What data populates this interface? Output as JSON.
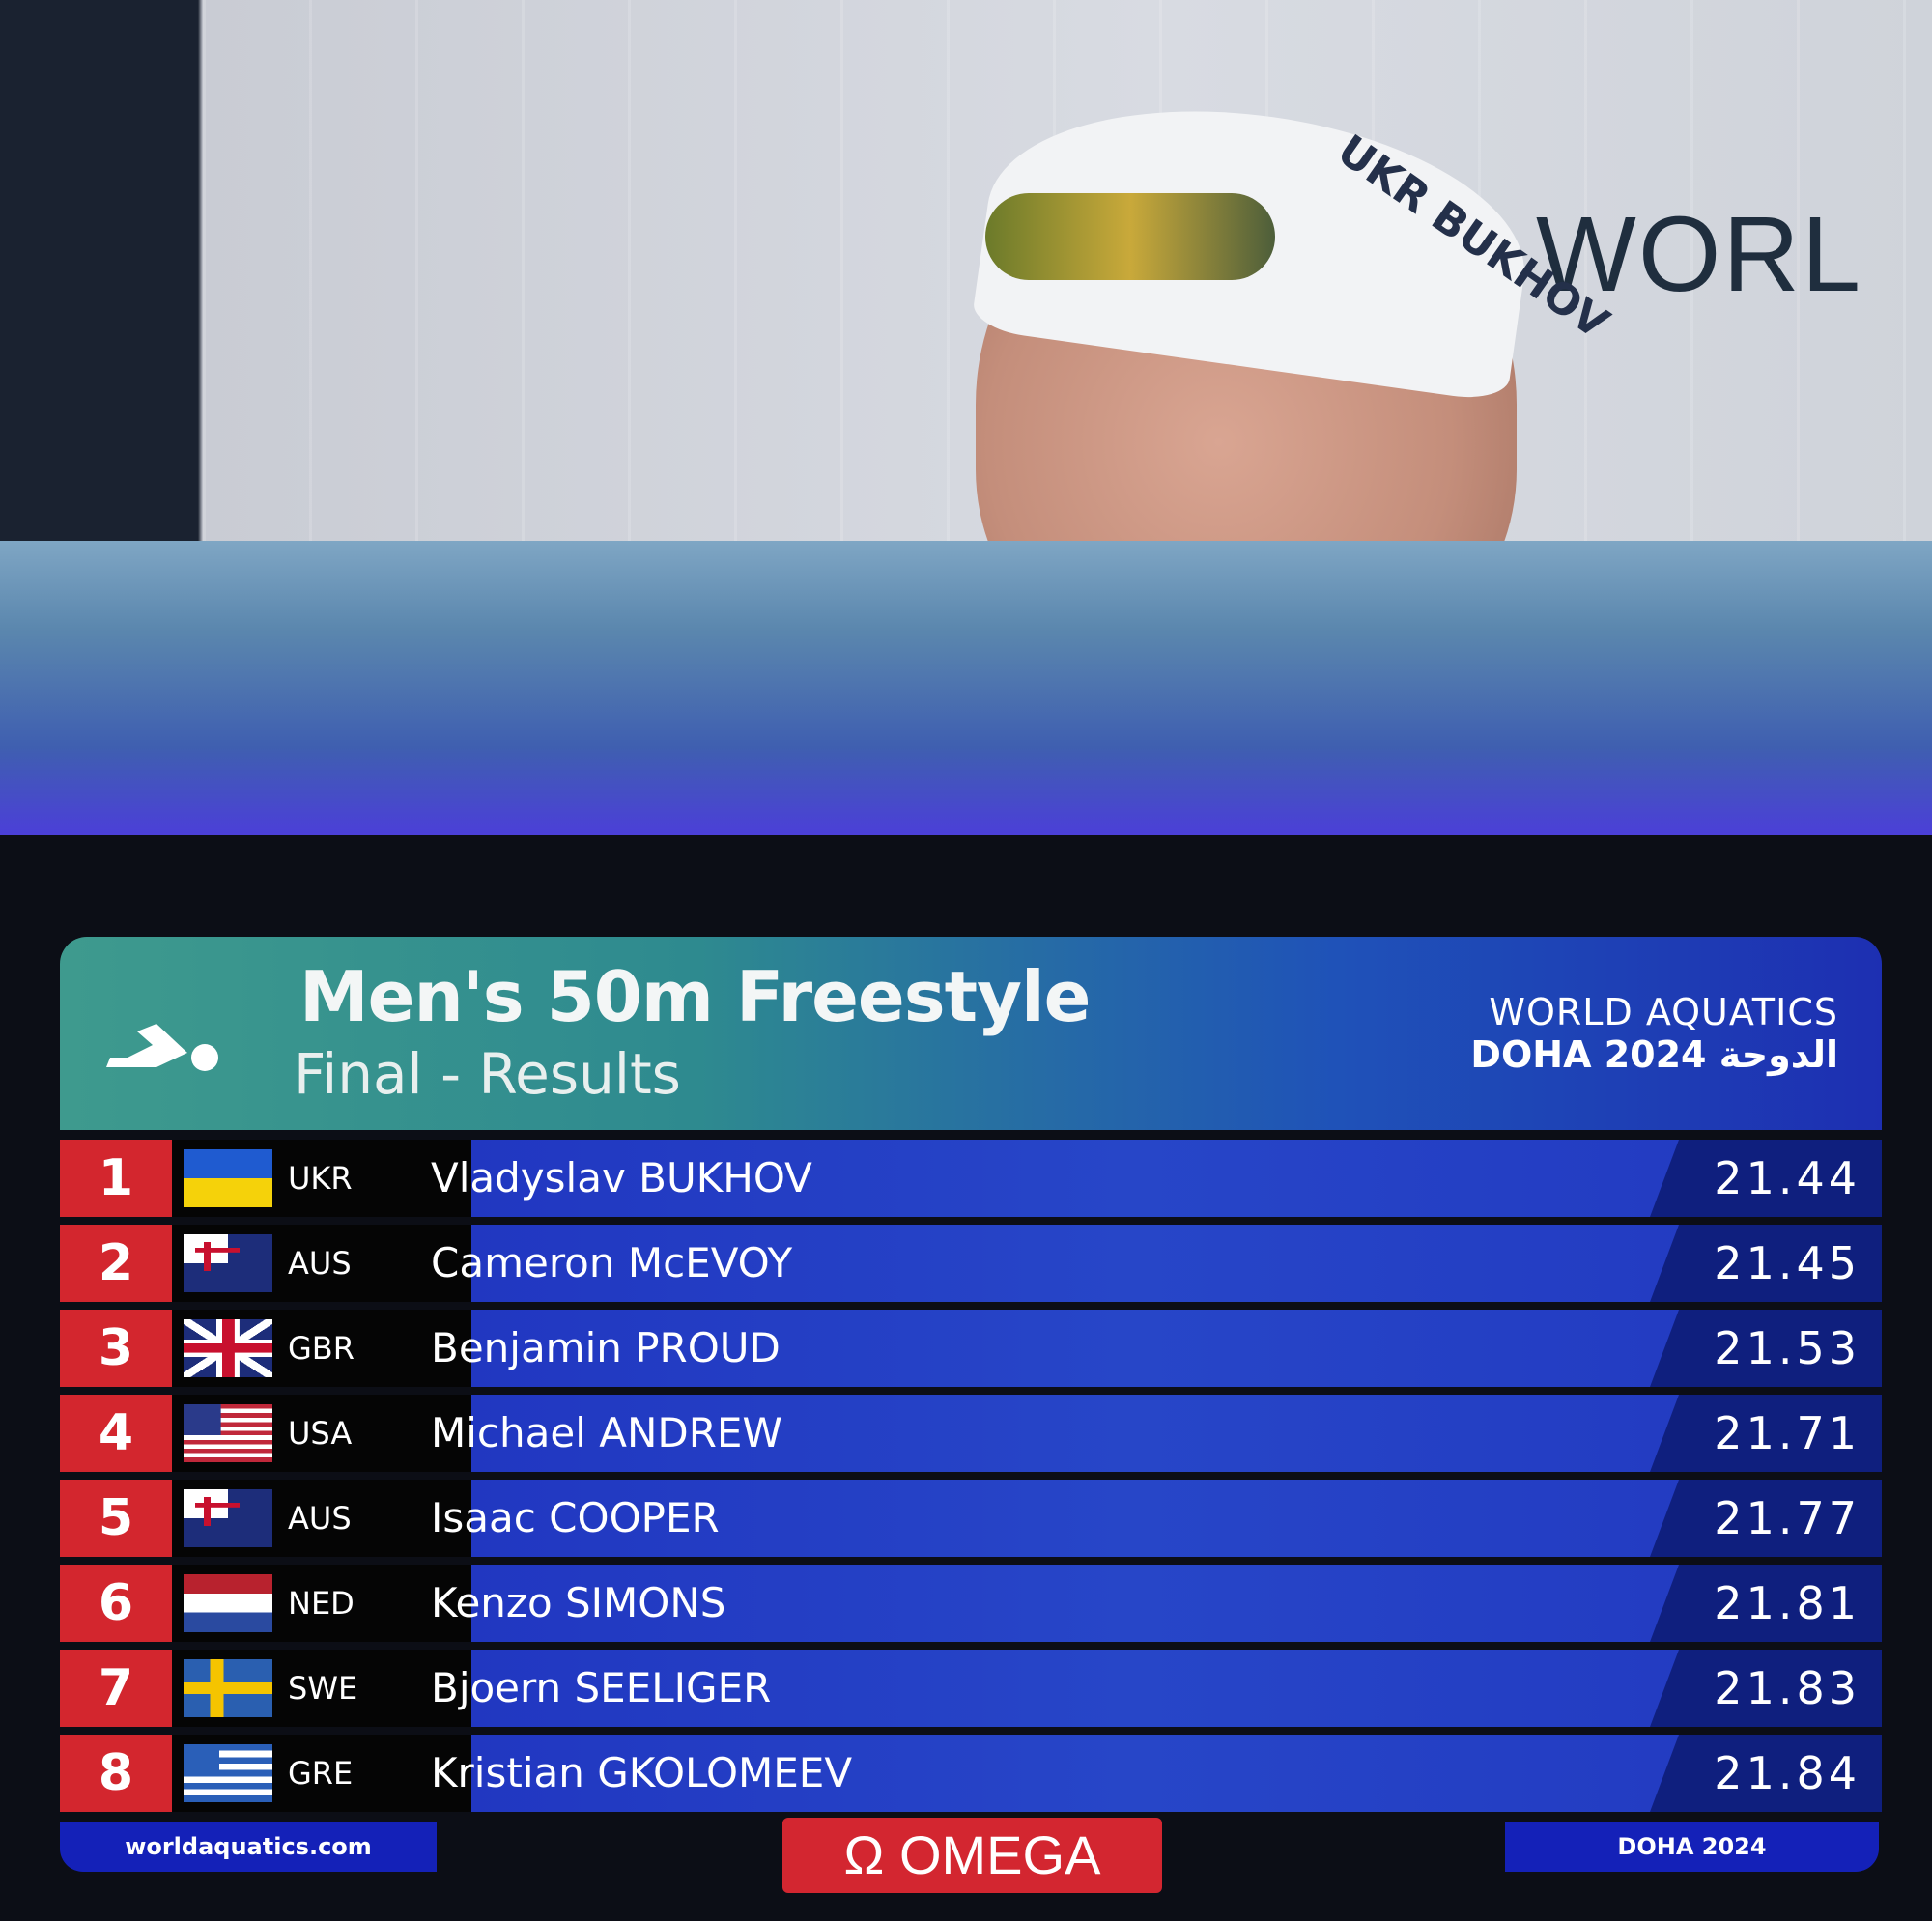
{
  "photo": {
    "sign_text": "WORL",
    "cap_text": "UKR BUKHOV"
  },
  "header": {
    "title": "Men's 50m Freestyle",
    "subtitle": "Final - Results",
    "brand_line1": "WORLD AQUATICS",
    "brand_line2": "DOHA 2024 الدوحة",
    "icon": "swimmer-icon"
  },
  "results": [
    {
      "rank": "1",
      "code": "UKR",
      "name": "Vladyslav BUKHOV",
      "time": "21.44"
    },
    {
      "rank": "2",
      "code": "AUS",
      "name": "Cameron McEVOY",
      "time": "21.45"
    },
    {
      "rank": "3",
      "code": "GBR",
      "name": "Benjamin PROUD",
      "time": "21.53"
    },
    {
      "rank": "4",
      "code": "USA",
      "name": "Michael ANDREW",
      "time": "21.71"
    },
    {
      "rank": "5",
      "code": "AUS",
      "name": "Isaac COOPER",
      "time": "21.77"
    },
    {
      "rank": "6",
      "code": "NED",
      "name": "Kenzo SIMONS",
      "time": "21.81"
    },
    {
      "rank": "7",
      "code": "SWE",
      "name": "Bjoern SEELIGER",
      "time": "21.83"
    },
    {
      "rank": "8",
      "code": "GRE",
      "name": "Kristian GKOLOMEEV",
      "time": "21.84"
    }
  ],
  "footer": {
    "website": "worldaquatics.com",
    "sponsor": "Ω OMEGA",
    "event": "DOHA 2024"
  },
  "colors": {
    "rank_red": "#d3262e",
    "row_blue": "#2746c8",
    "header_teal": "#3e9a8e"
  }
}
